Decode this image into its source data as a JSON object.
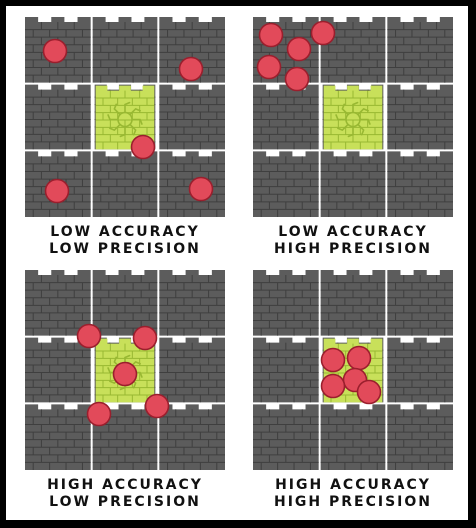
{
  "colors": {
    "brick": "#5c5c5c",
    "brick_dark": "#3f3f3f",
    "mortar": "#7a7a7a",
    "target": "#c8e05a",
    "target_dark": "#98b832",
    "dot_fill": "#e24a5a",
    "dot_stroke": "#9a1f2d"
  },
  "panels": [
    {
      "caption_line1": "LOW ACCURACY",
      "caption_line2": "LOW PRECISION",
      "target_has_emblem": true,
      "hits": [
        [
          0.15,
          0.17
        ],
        [
          0.83,
          0.26
        ],
        [
          0.59,
          0.65
        ],
        [
          0.16,
          0.87
        ],
        [
          0.88,
          0.86
        ]
      ]
    },
    {
      "caption_line1": "LOW ACCURACY",
      "caption_line2": "HIGH PRECISION",
      "target_has_emblem": true,
      "hits": [
        [
          0.09,
          0.09
        ],
        [
          0.23,
          0.16
        ],
        [
          0.35,
          0.08
        ],
        [
          0.08,
          0.25
        ],
        [
          0.22,
          0.31
        ]
      ]
    },
    {
      "caption_line1": "HIGH ACCURACY",
      "caption_line2": "LOW PRECISION",
      "target_has_emblem": true,
      "hits": [
        [
          0.32,
          0.33
        ],
        [
          0.6,
          0.34
        ],
        [
          0.5,
          0.52
        ],
        [
          0.37,
          0.72
        ],
        [
          0.66,
          0.68
        ]
      ]
    },
    {
      "caption_line1": "HIGH ACCURACY",
      "caption_line2": "HIGH PRECISION",
      "target_has_emblem": false,
      "hits": [
        [
          0.4,
          0.45
        ],
        [
          0.53,
          0.44
        ],
        [
          0.51,
          0.55
        ],
        [
          0.4,
          0.58
        ],
        [
          0.58,
          0.61
        ]
      ]
    }
  ]
}
